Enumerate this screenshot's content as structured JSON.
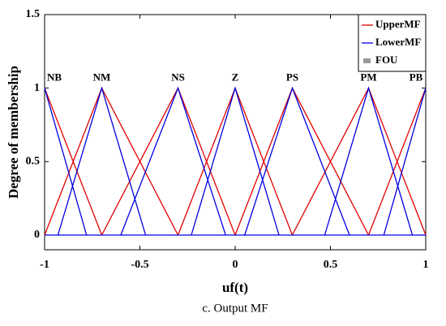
{
  "chart_data": {
    "type": "line",
    "xlabel": "uf(t)",
    "ylabel": "Degree of membership",
    "caption": "c. Output MF",
    "xlim": [
      -1,
      1
    ],
    "ylim": [
      -0.1,
      1.5
    ],
    "xticks": [
      -1,
      -0.5,
      0,
      0.5,
      1
    ],
    "yticks": [
      0,
      0.5,
      1,
      1.5
    ],
    "grid": false,
    "legend": "upper right",
    "annotations": [
      {
        "text": "NB",
        "x": -1
      },
      {
        "text": "NM",
        "x": -0.7
      },
      {
        "text": "NS",
        "x": -0.3
      },
      {
        "text": "Z",
        "x": 0
      },
      {
        "text": "PS",
        "x": 0.3
      },
      {
        "text": "PM",
        "x": 0.7
      },
      {
        "text": "PB",
        "x": 1
      }
    ],
    "series": [
      {
        "name": "UpperMF",
        "color": "#e00000",
        "x": [
          -1,
          -0.7,
          null,
          -1,
          -0.7,
          -0.3,
          null,
          -0.7,
          -0.3,
          0,
          null,
          -0.3,
          0,
          0.3,
          null,
          0,
          0.3,
          0.7,
          null,
          0.3,
          0.7,
          1,
          null,
          0.7,
          1
        ],
        "values": [
          1,
          0,
          null,
          0,
          1,
          0,
          null,
          0,
          1,
          0,
          null,
          0,
          1,
          0,
          null,
          0,
          1,
          0,
          null,
          0,
          1,
          0,
          null,
          0,
          1
        ]
      },
      {
        "name": "LowerMF",
        "color": "#0000e0",
        "x": [
          -1,
          -0.78,
          null,
          -0.93,
          -0.7,
          -0.47,
          null,
          -0.6,
          -0.3,
          -0.05,
          null,
          -0.23,
          0,
          0.23,
          null,
          0.05,
          0.3,
          0.6,
          null,
          0.47,
          0.7,
          0.93,
          null,
          0.78,
          1,
          null,
          -1,
          1
        ],
        "values": [
          1,
          0,
          null,
          0,
          1,
          0,
          null,
          0,
          1,
          0,
          null,
          0,
          1,
          0,
          null,
          0,
          1,
          0,
          null,
          0,
          1,
          0,
          null,
          0,
          1,
          null,
          0,
          0
        ]
      },
      {
        "name": "FOU",
        "color": "#999999"
      }
    ]
  }
}
